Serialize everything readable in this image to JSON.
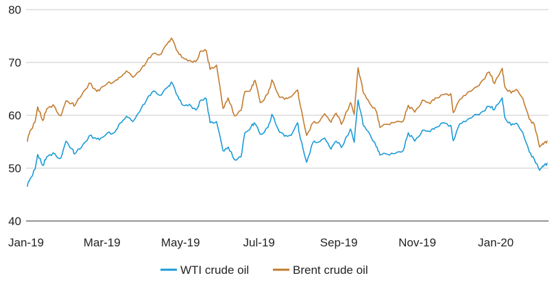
{
  "chart_data": {
    "type": "line",
    "title": "",
    "xlabel": "",
    "ylabel": "",
    "ylim": [
      40,
      80
    ],
    "yticks": [
      40,
      50,
      60,
      70,
      80
    ],
    "xlim": [
      "2019-01-01",
      "2020-02-11"
    ],
    "xticks": [
      {
        "date": "2019-01-01",
        "label": "Jan-19"
      },
      {
        "date": "2019-03-01",
        "label": "Mar-19"
      },
      {
        "date": "2019-05-01",
        "label": "May-19"
      },
      {
        "date": "2019-07-01",
        "label": "Jul-19"
      },
      {
        "date": "2019-09-01",
        "label": "Sep-19"
      },
      {
        "date": "2019-11-01",
        "label": "Nov-19"
      },
      {
        "date": "2020-01-01",
        "label": "Jan-20"
      }
    ],
    "grid": "horizontal",
    "legend": "bottom",
    "series": [
      {
        "name": "WTI crude oil",
        "color": "#1a9ad6",
        "points": [
          [
            "2019-01-02",
            46.5
          ],
          [
            "2019-01-04",
            47.9
          ],
          [
            "2019-01-08",
            49.8
          ],
          [
            "2019-01-10",
            52.6
          ],
          [
            "2019-01-14",
            50.5
          ],
          [
            "2019-01-17",
            52.1
          ],
          [
            "2019-01-22",
            52.9
          ],
          [
            "2019-01-28",
            51.9
          ],
          [
            "2019-02-01",
            55.1
          ],
          [
            "2019-02-05",
            53.7
          ],
          [
            "2019-02-08",
            52.7
          ],
          [
            "2019-02-13",
            53.9
          ],
          [
            "2019-02-19",
            56.1
          ],
          [
            "2019-02-25",
            55.5
          ],
          [
            "2019-03-01",
            55.8
          ],
          [
            "2019-03-05",
            56.6
          ],
          [
            "2019-03-11",
            56.8
          ],
          [
            "2019-03-15",
            58.5
          ],
          [
            "2019-03-20",
            59.8
          ],
          [
            "2019-03-25",
            58.8
          ],
          [
            "2019-04-01",
            61.6
          ],
          [
            "2019-04-05",
            63.1
          ],
          [
            "2019-04-10",
            64.6
          ],
          [
            "2019-04-16",
            63.8
          ],
          [
            "2019-04-22",
            65.6
          ],
          [
            "2019-04-24",
            66.3
          ],
          [
            "2019-04-29",
            63.6
          ],
          [
            "2019-05-03",
            61.9
          ],
          [
            "2019-05-08",
            62.1
          ],
          [
            "2019-05-13",
            61.0
          ],
          [
            "2019-05-17",
            62.9
          ],
          [
            "2019-05-21",
            63.1
          ],
          [
            "2019-05-24",
            58.6
          ],
          [
            "2019-05-29",
            58.8
          ],
          [
            "2019-06-03",
            53.3
          ],
          [
            "2019-06-07",
            54.0
          ],
          [
            "2019-06-12",
            51.6
          ],
          [
            "2019-06-17",
            52.1
          ],
          [
            "2019-06-20",
            56.7
          ],
          [
            "2019-06-25",
            57.9
          ],
          [
            "2019-06-28",
            58.4
          ],
          [
            "2019-07-02",
            56.4
          ],
          [
            "2019-07-08",
            57.7
          ],
          [
            "2019-07-11",
            60.2
          ],
          [
            "2019-07-17",
            56.8
          ],
          [
            "2019-07-22",
            56.2
          ],
          [
            "2019-07-26",
            56.2
          ],
          [
            "2019-07-31",
            58.6
          ],
          [
            "2019-08-02",
            55.7
          ],
          [
            "2019-08-07",
            51.1
          ],
          [
            "2019-08-12",
            54.9
          ],
          [
            "2019-08-16",
            54.9
          ],
          [
            "2019-08-21",
            55.7
          ],
          [
            "2019-08-26",
            53.6
          ],
          [
            "2019-08-30",
            55.1
          ],
          [
            "2019-09-03",
            53.9
          ],
          [
            "2019-09-10",
            57.4
          ],
          [
            "2019-09-13",
            54.9
          ],
          [
            "2019-09-16",
            62.9
          ],
          [
            "2019-09-20",
            58.1
          ],
          [
            "2019-09-25",
            56.5
          ],
          [
            "2019-09-30",
            54.1
          ],
          [
            "2019-10-03",
            52.5
          ],
          [
            "2019-10-09",
            52.6
          ],
          [
            "2019-10-15",
            52.8
          ],
          [
            "2019-10-21",
            53.3
          ],
          [
            "2019-10-25",
            56.7
          ],
          [
            "2019-10-30",
            55.1
          ],
          [
            "2019-11-05",
            57.2
          ],
          [
            "2019-11-11",
            56.9
          ],
          [
            "2019-11-15",
            57.7
          ],
          [
            "2019-11-21",
            58.6
          ],
          [
            "2019-11-27",
            58.1
          ],
          [
            "2019-11-29",
            55.2
          ],
          [
            "2019-12-04",
            58.4
          ],
          [
            "2019-12-10",
            59.2
          ],
          [
            "2019-12-16",
            60.2
          ],
          [
            "2019-12-20",
            60.4
          ],
          [
            "2019-12-27",
            61.7
          ],
          [
            "2019-12-31",
            61.1
          ],
          [
            "2020-01-06",
            63.3
          ],
          [
            "2020-01-08",
            59.6
          ],
          [
            "2020-01-13",
            58.1
          ],
          [
            "2020-01-17",
            58.5
          ],
          [
            "2020-01-22",
            56.7
          ],
          [
            "2020-01-27",
            53.1
          ],
          [
            "2020-01-31",
            51.6
          ],
          [
            "2020-02-04",
            49.6
          ],
          [
            "2020-02-07",
            50.3
          ],
          [
            "2020-02-10",
            51.0
          ]
        ]
      },
      {
        "name": "Brent crude oil",
        "color": "#c27a2c",
        "points": [
          [
            "2019-01-02",
            55.0
          ],
          [
            "2019-01-04",
            57.0
          ],
          [
            "2019-01-08",
            58.7
          ],
          [
            "2019-01-10",
            61.6
          ],
          [
            "2019-01-14",
            59.0
          ],
          [
            "2019-01-17",
            61.2
          ],
          [
            "2019-01-22",
            62.0
          ],
          [
            "2019-01-28",
            59.9
          ],
          [
            "2019-02-01",
            62.7
          ],
          [
            "2019-02-05",
            62.2
          ],
          [
            "2019-02-08",
            61.9
          ],
          [
            "2019-02-13",
            63.7
          ],
          [
            "2019-02-19",
            66.1
          ],
          [
            "2019-02-25",
            64.5
          ],
          [
            "2019-03-01",
            65.4
          ],
          [
            "2019-03-05",
            66.0
          ],
          [
            "2019-03-11",
            66.5
          ],
          [
            "2019-03-15",
            67.2
          ],
          [
            "2019-03-20",
            68.4
          ],
          [
            "2019-03-25",
            67.2
          ],
          [
            "2019-04-01",
            69.0
          ],
          [
            "2019-04-05",
            70.3
          ],
          [
            "2019-04-10",
            71.7
          ],
          [
            "2019-04-16",
            71.6
          ],
          [
            "2019-04-22",
            74.0
          ],
          [
            "2019-04-24",
            74.6
          ],
          [
            "2019-04-29",
            72.0
          ],
          [
            "2019-05-03",
            70.9
          ],
          [
            "2019-05-08",
            70.4
          ],
          [
            "2019-05-13",
            70.2
          ],
          [
            "2019-05-17",
            72.2
          ],
          [
            "2019-05-21",
            72.2
          ],
          [
            "2019-05-24",
            68.7
          ],
          [
            "2019-05-29",
            69.5
          ],
          [
            "2019-06-03",
            61.3
          ],
          [
            "2019-06-07",
            63.3
          ],
          [
            "2019-06-12",
            59.9
          ],
          [
            "2019-06-17",
            60.9
          ],
          [
            "2019-06-20",
            64.5
          ],
          [
            "2019-06-25",
            65.0
          ],
          [
            "2019-06-28",
            66.6
          ],
          [
            "2019-07-02",
            62.4
          ],
          [
            "2019-07-08",
            64.1
          ],
          [
            "2019-07-11",
            66.7
          ],
          [
            "2019-07-17",
            63.4
          ],
          [
            "2019-07-22",
            63.3
          ],
          [
            "2019-07-26",
            63.5
          ],
          [
            "2019-07-31",
            64.8
          ],
          [
            "2019-08-02",
            61.9
          ],
          [
            "2019-08-07",
            56.2
          ],
          [
            "2019-08-12",
            58.6
          ],
          [
            "2019-08-16",
            58.6
          ],
          [
            "2019-08-21",
            60.3
          ],
          [
            "2019-08-26",
            58.7
          ],
          [
            "2019-08-30",
            60.4
          ],
          [
            "2019-09-03",
            58.3
          ],
          [
            "2019-09-10",
            62.4
          ],
          [
            "2019-09-13",
            60.2
          ],
          [
            "2019-09-16",
            69.0
          ],
          [
            "2019-09-20",
            64.3
          ],
          [
            "2019-09-25",
            62.3
          ],
          [
            "2019-09-30",
            60.8
          ],
          [
            "2019-10-03",
            57.7
          ],
          [
            "2019-10-09",
            58.3
          ],
          [
            "2019-10-15",
            58.7
          ],
          [
            "2019-10-21",
            58.9
          ],
          [
            "2019-10-25",
            61.9
          ],
          [
            "2019-10-30",
            60.6
          ],
          [
            "2019-11-05",
            62.9
          ],
          [
            "2019-11-11",
            62.2
          ],
          [
            "2019-11-15",
            63.3
          ],
          [
            "2019-11-21",
            63.9
          ],
          [
            "2019-11-27",
            64.1
          ],
          [
            "2019-11-29",
            60.5
          ],
          [
            "2019-12-04",
            63.0
          ],
          [
            "2019-12-10",
            64.3
          ],
          [
            "2019-12-16",
            65.3
          ],
          [
            "2019-12-20",
            66.1
          ],
          [
            "2019-12-27",
            68.2
          ],
          [
            "2019-12-31",
            66.0
          ],
          [
            "2020-01-06",
            68.9
          ],
          [
            "2020-01-08",
            65.4
          ],
          [
            "2020-01-13",
            64.2
          ],
          [
            "2020-01-17",
            64.9
          ],
          [
            "2020-01-22",
            63.2
          ],
          [
            "2020-01-27",
            59.3
          ],
          [
            "2020-01-31",
            58.2
          ],
          [
            "2020-02-04",
            54.0
          ],
          [
            "2020-02-07",
            54.5
          ],
          [
            "2020-02-10",
            55.2
          ]
        ]
      }
    ]
  }
}
